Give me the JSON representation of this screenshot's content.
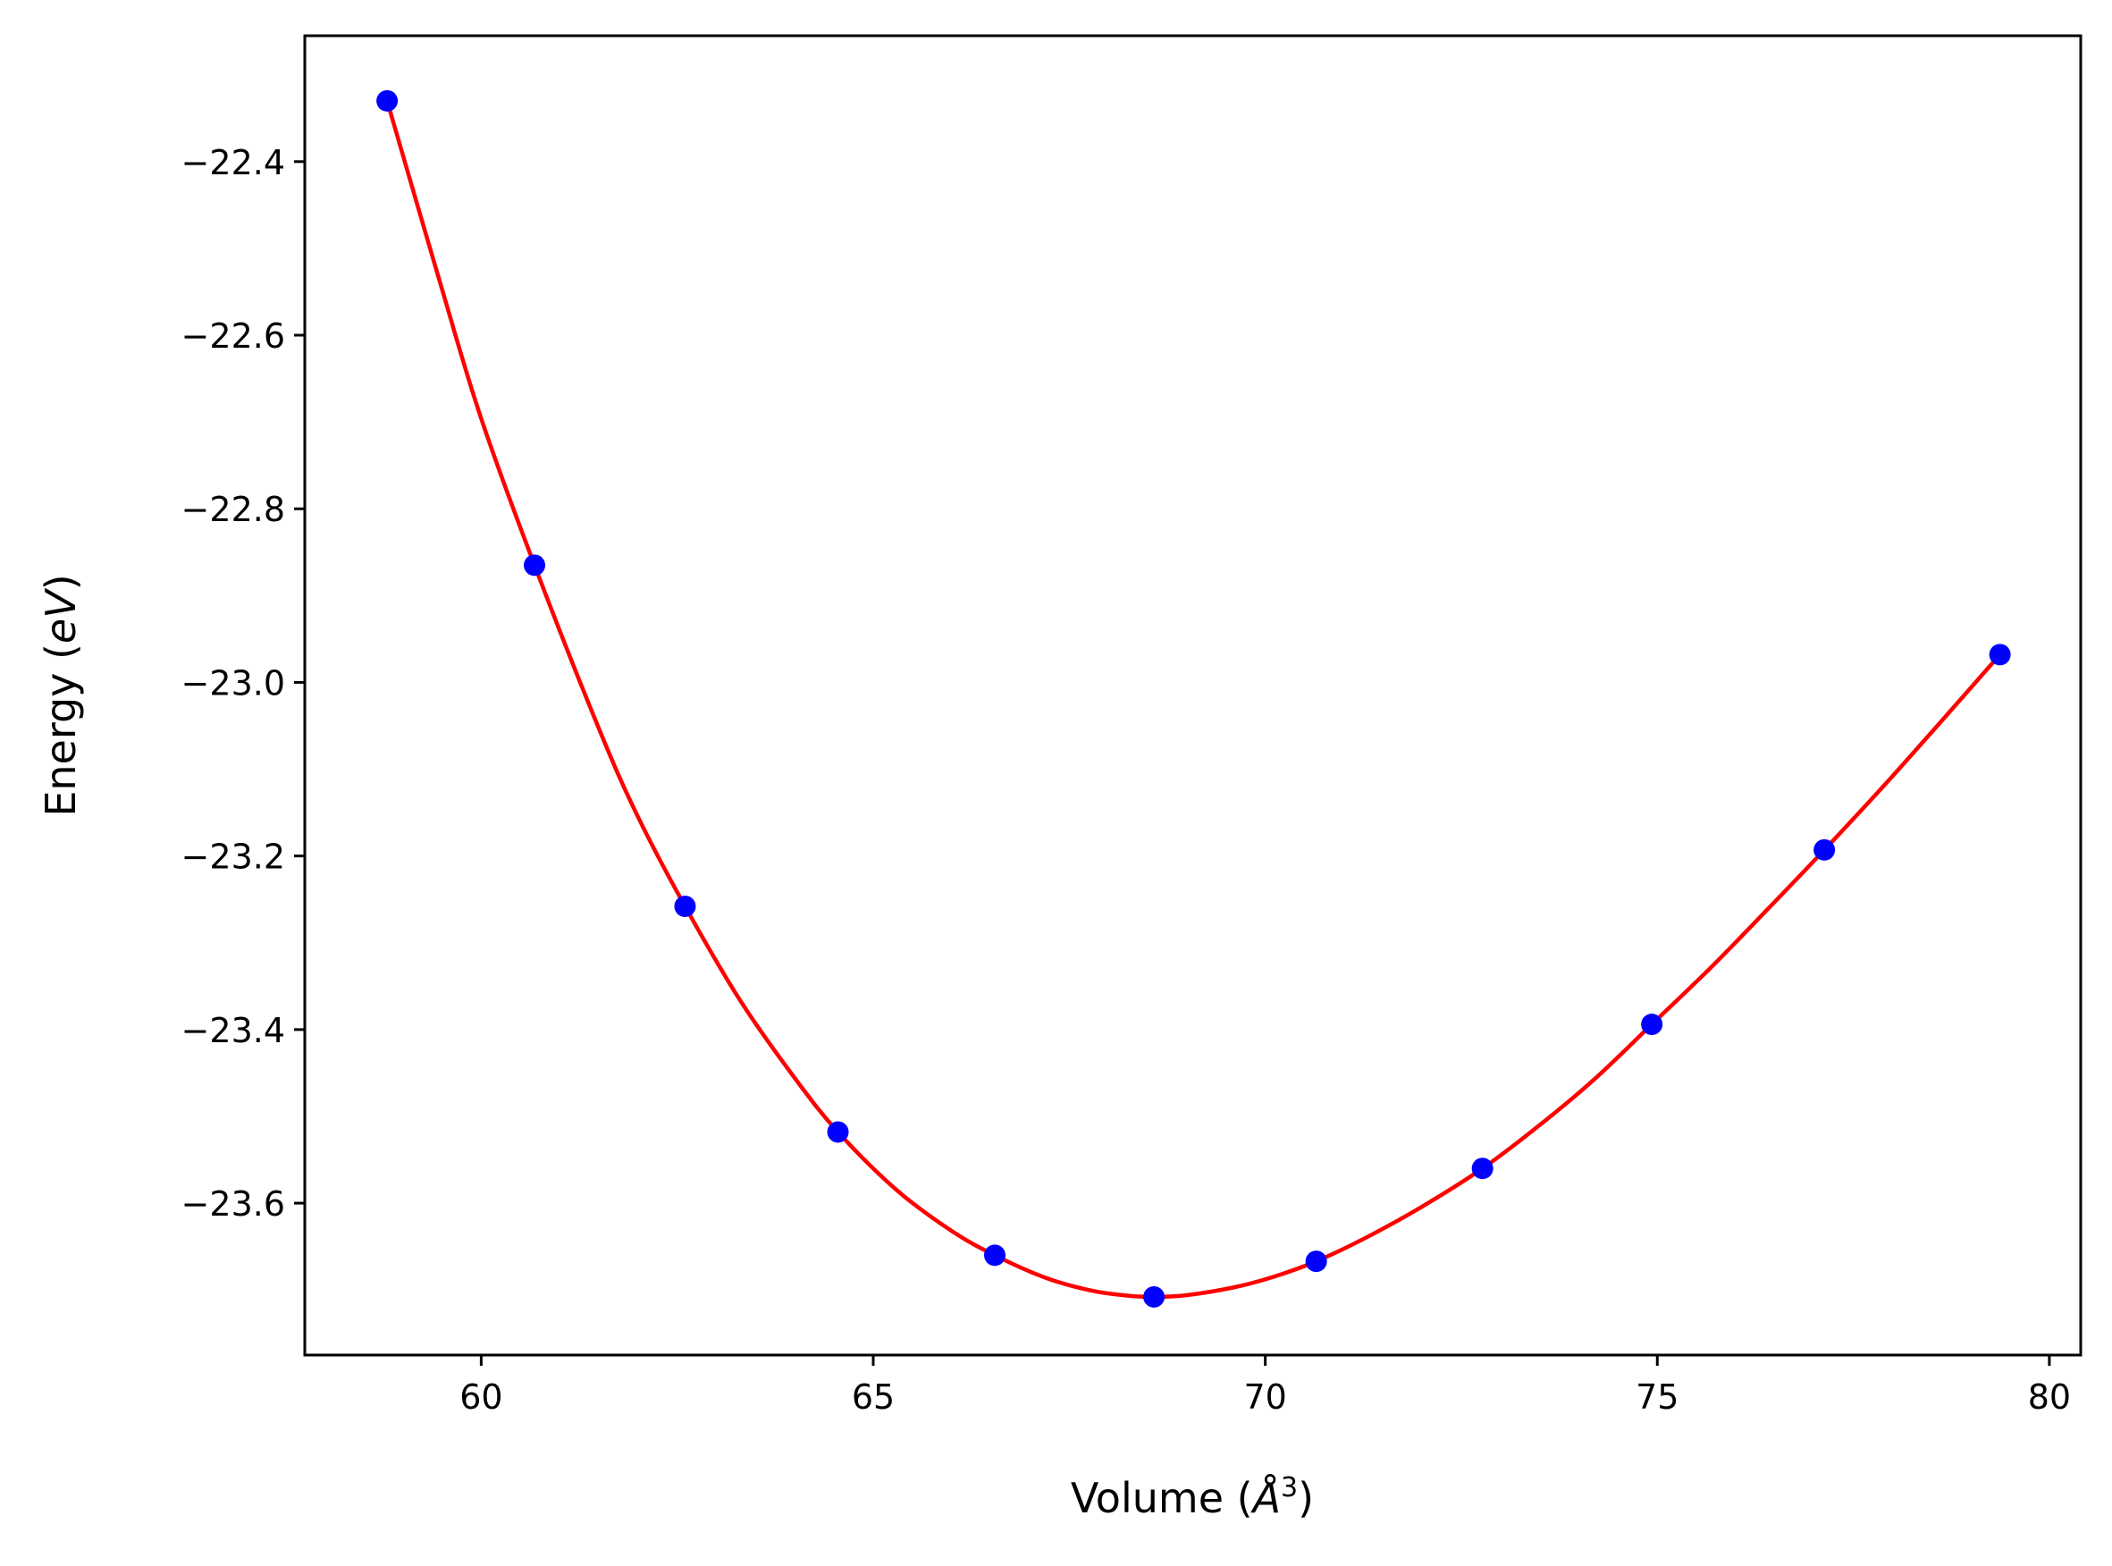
{
  "chart_data": {
    "type": "scatter",
    "title": "",
    "xlabel": "Volume ($\\AA^3$)",
    "xlabel_display": {
      "prefix": "Volume (",
      "italic": "Å",
      "superscript": "3",
      "suffix": ")"
    },
    "ylabel": "Energy ($eV$)",
    "ylabel_display": {
      "prefix": "Energy (",
      "italic": "eV",
      "suffix": ")"
    },
    "xlim": [
      57.75,
      80.4
    ],
    "ylim": [
      -23.775,
      -22.255
    ],
    "x_ticks": [
      60,
      65,
      70,
      75,
      80
    ],
    "x_tick_labels": [
      "60",
      "65",
      "70",
      "75",
      "80"
    ],
    "y_ticks": [
      -22.4,
      -22.6,
      -22.8,
      -23.0,
      -23.2,
      -23.4,
      -23.6
    ],
    "y_tick_labels": [
      "−22.4",
      "−22.6",
      "−22.8",
      "−23.0",
      "−23.2",
      "−23.4",
      "−23.6"
    ],
    "grid": false,
    "series": [
      {
        "kind": "points",
        "color": "#0000ff",
        "x": [
          58.8,
          60.68,
          62.6,
          64.55,
          66.55,
          68.58,
          70.65,
          72.77,
          74.93,
          77.13,
          79.37
        ],
        "y": [
          -22.33,
          -22.865,
          -23.258,
          -23.518,
          -23.66,
          -23.708,
          -23.667,
          -23.56,
          -23.394,
          -23.193,
          -22.968
        ]
      },
      {
        "kind": "fit-line",
        "color": "#ff0000",
        "x": [
          58.8,
          59.5,
          60.0,
          60.68,
          61.5,
          62.0,
          62.6,
          63.3,
          64.0,
          64.55,
          65.3,
          66.0,
          66.55,
          67.2,
          67.8,
          68.3,
          68.6,
          69.0,
          69.6,
          70.1,
          70.65,
          71.3,
          72.0,
          72.77,
          73.5,
          74.2,
          74.93,
          75.7,
          76.4,
          77.13,
          77.9,
          78.6,
          79.37
        ],
        "y": [
          -22.33,
          -22.547,
          -22.696,
          -22.865,
          -23.053,
          -23.155,
          -23.258,
          -23.366,
          -23.456,
          -23.518,
          -23.585,
          -23.632,
          -23.66,
          -23.686,
          -23.701,
          -23.707,
          -23.708,
          -23.706,
          -23.697,
          -23.685,
          -23.667,
          -23.639,
          -23.604,
          -23.56,
          -23.51,
          -23.457,
          -23.394,
          -23.327,
          -23.262,
          -23.193,
          -23.118,
          -23.047,
          -22.968
        ]
      }
    ],
    "colors": {
      "axes": "#000000",
      "background": "#ffffff"
    }
  }
}
